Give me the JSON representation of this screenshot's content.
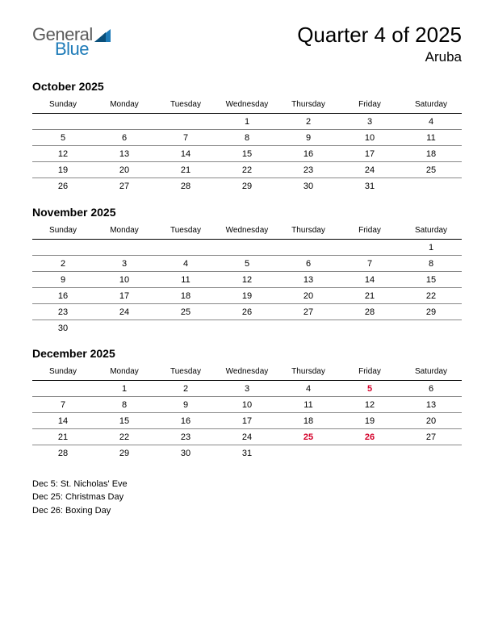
{
  "logo": {
    "text1": "General",
    "text2": "Blue",
    "color1": "#5a5a5a",
    "color2": "#1e7bb8"
  },
  "header": {
    "title": "Quarter 4 of 2025",
    "subtitle": "Aruba"
  },
  "dayHeaders": [
    "Sunday",
    "Monday",
    "Tuesday",
    "Wednesday",
    "Thursday",
    "Friday",
    "Saturday"
  ],
  "months": [
    {
      "name": "October 2025",
      "weeks": [
        [
          "",
          "",
          "",
          "1",
          "2",
          "3",
          "4"
        ],
        [
          "5",
          "6",
          "7",
          "8",
          "9",
          "10",
          "11"
        ],
        [
          "12",
          "13",
          "14",
          "15",
          "16",
          "17",
          "18"
        ],
        [
          "19",
          "20",
          "21",
          "22",
          "23",
          "24",
          "25"
        ],
        [
          "26",
          "27",
          "28",
          "29",
          "30",
          "31",
          ""
        ]
      ],
      "holidays": []
    },
    {
      "name": "November 2025",
      "weeks": [
        [
          "",
          "",
          "",
          "",
          "",
          "",
          "1"
        ],
        [
          "2",
          "3",
          "4",
          "5",
          "6",
          "7",
          "8"
        ],
        [
          "9",
          "10",
          "11",
          "12",
          "13",
          "14",
          "15"
        ],
        [
          "16",
          "17",
          "18",
          "19",
          "20",
          "21",
          "22"
        ],
        [
          "23",
          "24",
          "25",
          "26",
          "27",
          "28",
          "29"
        ],
        [
          "30",
          "",
          "",
          "",
          "",
          "",
          ""
        ]
      ],
      "holidays": []
    },
    {
      "name": "December 2025",
      "weeks": [
        [
          "",
          "1",
          "2",
          "3",
          "4",
          "5",
          "6"
        ],
        [
          "7",
          "8",
          "9",
          "10",
          "11",
          "12",
          "13"
        ],
        [
          "14",
          "15",
          "16",
          "17",
          "18",
          "19",
          "20"
        ],
        [
          "21",
          "22",
          "23",
          "24",
          "25",
          "26",
          "27"
        ],
        [
          "28",
          "29",
          "30",
          "31",
          "",
          "",
          ""
        ]
      ],
      "holidays": [
        "5",
        "25",
        "26"
      ]
    }
  ],
  "holidayList": [
    "Dec 5: St. Nicholas' Eve",
    "Dec 25: Christmas Day",
    "Dec 26: Boxing Day"
  ],
  "styling": {
    "page_bg": "#ffffff",
    "text_color": "#000000",
    "holiday_color": "#d4002a",
    "row_border_color": "#888888",
    "header_border_color": "#000000",
    "title_fontsize": 26,
    "subtitle_fontsize": 17,
    "month_fontsize": 14,
    "dayheader_fontsize": 10,
    "cell_fontsize": 11,
    "holiday_fontsize": 11
  }
}
